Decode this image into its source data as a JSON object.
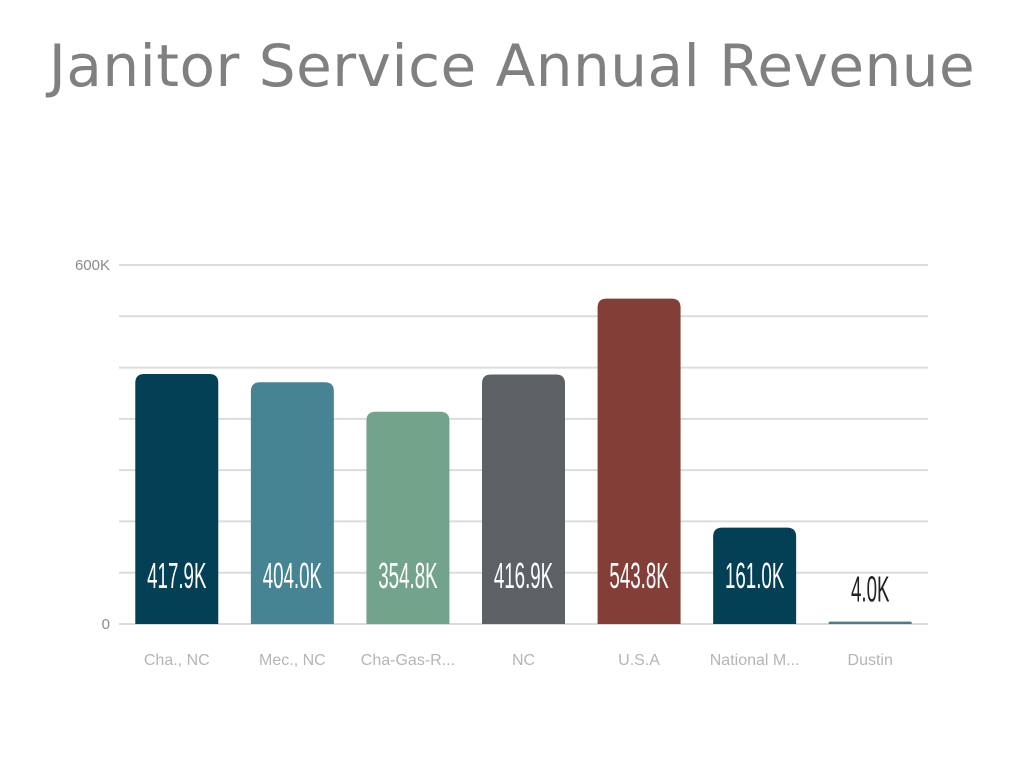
{
  "chart_data": {
    "type": "bar",
    "title": "Janitor Service Annual Revenue",
    "xlabel": "",
    "ylabel": "",
    "ylim": [
      0,
      600000
    ],
    "grid": true,
    "y_ticks": [
      {
        "value": 0,
        "label": "0"
      },
      {
        "value": 600000,
        "label": "600K"
      }
    ],
    "y_gridline_count": 7,
    "categories": [
      "Cha., NC",
      "Mec., NC",
      "Cha-Gas-R...",
      "NC",
      "U.S.A",
      "National M...",
      "Dustin"
    ],
    "values": [
      417900,
      404000,
      354800,
      416900,
      543800,
      161000,
      4000
    ],
    "value_labels": [
      "417.9K",
      "404.0K",
      "354.8K",
      "416.9K",
      "543.8K",
      "161.0K",
      "4.0K"
    ],
    "colors": [
      "#033f55",
      "#468393",
      "#72a38b",
      "#5b6164",
      "#843e38",
      "#033f55",
      "#4a7b86"
    ],
    "label_inside_color": "#ffffff",
    "label_outside_color": "#222222",
    "axis_label_color": "#8a8a8a",
    "category_label_color": "#b5b5b5"
  }
}
